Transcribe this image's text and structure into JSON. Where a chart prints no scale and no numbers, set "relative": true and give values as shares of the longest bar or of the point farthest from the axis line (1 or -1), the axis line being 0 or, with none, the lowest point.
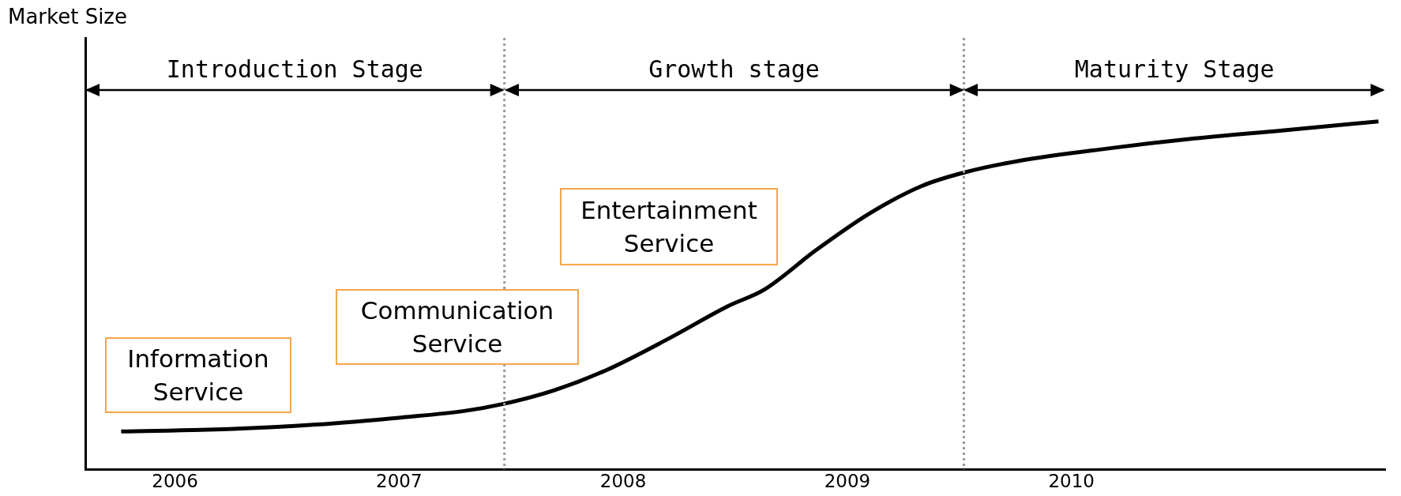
{
  "chart_data": {
    "type": "line",
    "relative": true,
    "ylabel": "Market Size",
    "xlim": [
      2005.6,
      2011.4
    ],
    "xticks": [
      2006,
      2007,
      2008,
      2009,
      2010
    ],
    "series": [
      {
        "color": "#000000",
        "x": [
          2005.76,
          2006.24,
          2006.63,
          2007.02,
          2007.29,
          2007.47,
          2007.69,
          2007.92,
          2008.2,
          2008.47,
          2008.63,
          2008.86,
          2009.1,
          2009.33,
          2009.52,
          2009.76,
          2010.16,
          2010.55,
          2010.94,
          2011.37
        ],
        "values": [
          0.109,
          0.116,
          0.129,
          0.15,
          0.168,
          0.189,
          0.227,
          0.284,
          0.375,
          0.47,
          0.517,
          0.63,
          0.736,
          0.814,
          0.853,
          0.886,
          0.922,
          0.951,
          0.974,
          1
        ]
      }
    ],
    "ref_lines": [
      {
        "axis": "x",
        "value": 2007.47,
        "color": "#999999",
        "line_style": "dotted"
      },
      {
        "axis": "x",
        "value": 2009.52,
        "color": "#999999",
        "line_style": "dotted"
      }
    ],
    "annotations": [
      "Introduction Stage",
      "Growth stage",
      "Maturity Stage",
      "Information Service",
      "Communication Service",
      "Entertainment Service"
    ],
    "grid": false,
    "legend": false,
    "marker": "none",
    "line_style": "solid"
  }
}
